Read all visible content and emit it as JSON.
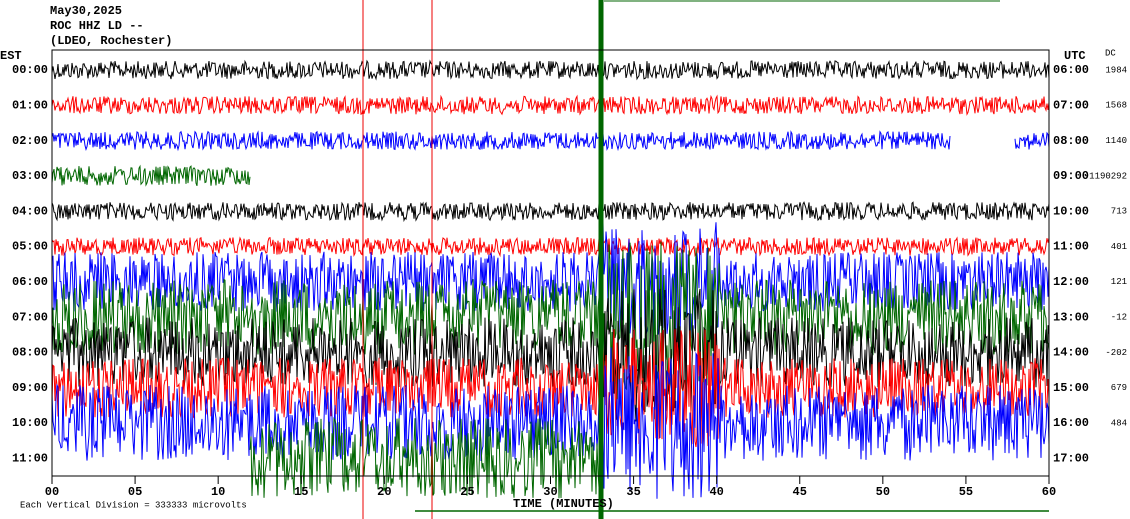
{
  "header": {
    "date": "May30,2025",
    "station": "ROC HHZ LD --",
    "location": "(LDEO, Rochester)"
  },
  "left_axis": {
    "title": "EST",
    "labels": [
      "00:00",
      "01:00",
      "02:00",
      "03:00",
      "04:00",
      "05:00",
      "06:00",
      "07:00",
      "08:00",
      "09:00",
      "10:00",
      "11:00"
    ]
  },
  "right_axis": {
    "title": "UTC",
    "labels": [
      "06:00",
      "07:00",
      "08:00",
      "09:00",
      "10:00",
      "11:00",
      "12:00",
      "13:00",
      "14:00",
      "15:00",
      "16:00",
      "17:00"
    ]
  },
  "dc": {
    "title": "DC",
    "values": [
      "1984",
      "1568",
      "1140",
      "-1190292",
      "713",
      "401",
      "121",
      "-12",
      "-202",
      "679",
      "484"
    ]
  },
  "x_axis": {
    "ticks": [
      "00",
      "05",
      "10",
      "15",
      "20",
      "25",
      "30",
      "35",
      "40",
      "45",
      "50",
      "55",
      "60"
    ],
    "title": "TIME (MINUTES)"
  },
  "footer": "Each Vertical Division = 333333 microvolts"
}
